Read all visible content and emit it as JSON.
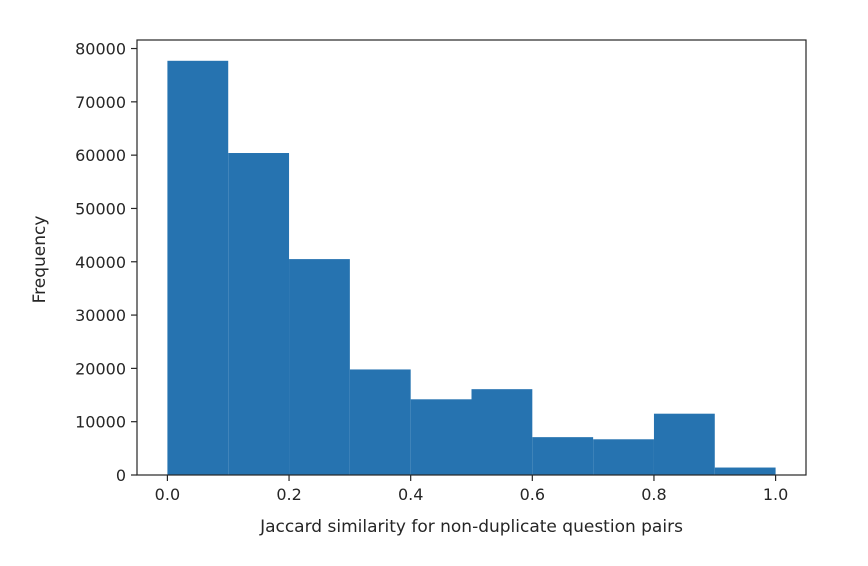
{
  "chart_data": {
    "type": "histogram",
    "title": "",
    "xlabel": "Jaccard similarity for non-duplicate question pairs",
    "ylabel": "Frequency",
    "bins": [
      {
        "x0": 0.0,
        "x1": 0.1,
        "value": 77700
      },
      {
        "x0": 0.1,
        "x1": 0.2,
        "value": 60400
      },
      {
        "x0": 0.2,
        "x1": 0.3,
        "value": 40500
      },
      {
        "x0": 0.3,
        "x1": 0.4,
        "value": 19800
      },
      {
        "x0": 0.4,
        "x1": 0.5,
        "value": 14200
      },
      {
        "x0": 0.5,
        "x1": 0.6,
        "value": 16100
      },
      {
        "x0": 0.6,
        "x1": 0.7,
        "value": 7100
      },
      {
        "x0": 0.7,
        "x1": 0.8,
        "value": 6700
      },
      {
        "x0": 0.8,
        "x1": 0.9,
        "value": 11500
      },
      {
        "x0": 0.9,
        "x1": 1.0,
        "value": 1400
      }
    ],
    "xlim": [
      -0.05,
      1.05
    ],
    "ylim": [
      0,
      81600
    ],
    "xticks": [
      0.0,
      0.2,
      0.4,
      0.6,
      0.8,
      1.0
    ],
    "xtick_labels": [
      "0.0",
      "0.2",
      "0.4",
      "0.6",
      "0.8",
      "1.0"
    ],
    "yticks": [
      0,
      10000,
      20000,
      30000,
      40000,
      50000,
      60000,
      70000,
      80000
    ],
    "ytick_labels": [
      "0",
      "10000",
      "20000",
      "30000",
      "40000",
      "50000",
      "60000",
      "70000",
      "80000"
    ],
    "bar_color": "#2673b0",
    "axis_color": "#262626",
    "grid": false,
    "legend": "none"
  }
}
